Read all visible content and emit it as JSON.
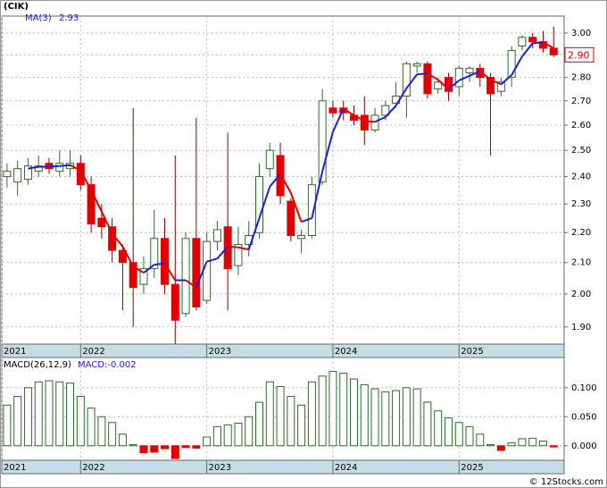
{
  "ticker": "(CIK)",
  "copyright": "© 12Stocks.com",
  "chart_data": [
    {
      "type": "candlestick",
      "x": [
        0,
        1,
        2,
        3,
        4,
        5,
        6,
        7,
        8,
        9,
        10,
        11,
        12,
        13,
        14,
        15,
        16,
        17,
        18,
        19,
        20,
        21,
        22,
        23,
        24,
        25,
        26,
        27,
        28,
        29,
        30,
        31,
        32,
        33,
        34,
        35,
        36,
        37,
        38,
        39,
        40,
        41,
        42,
        43,
        44,
        45,
        46,
        47,
        48,
        49,
        50,
        51,
        52
      ],
      "open": [
        2.4,
        2.38,
        2.39,
        2.42,
        2.45,
        2.42,
        2.43,
        2.45,
        2.37,
        2.25,
        2.22,
        2.14,
        2.1,
        2.03,
        2.08,
        2.18,
        2.03,
        1.94,
        2.18,
        1.98,
        2.17,
        2.22,
        2.09,
        2.16,
        2.2,
        2.43,
        2.48,
        2.31,
        2.18,
        2.19,
        2.38,
        2.67,
        2.67,
        2.64,
        2.64,
        2.58,
        2.64,
        2.69,
        2.72,
        2.85,
        2.86,
        2.75,
        2.8,
        2.76,
        2.82,
        2.84,
        2.8,
        2.74,
        2.8,
        2.94,
        2.98,
        2.96,
        2.93
      ],
      "high": [
        2.45,
        2.46,
        2.47,
        2.48,
        2.47,
        2.5,
        2.5,
        2.48,
        2.4,
        2.3,
        2.25,
        2.16,
        2.67,
        2.12,
        2.28,
        2.25,
        2.48,
        2.2,
        2.63,
        2.2,
        2.24,
        2.57,
        2.22,
        2.24,
        2.45,
        2.53,
        2.53,
        2.32,
        2.21,
        2.4,
        2.75,
        2.7,
        2.7,
        2.68,
        2.72,
        2.67,
        2.7,
        2.78,
        2.87,
        2.87,
        2.87,
        2.8,
        2.82,
        2.85,
        2.85,
        2.86,
        2.82,
        2.8,
        2.94,
        2.99,
        3.0,
        3.01,
        3.03
      ],
      "low": [
        2.36,
        2.33,
        2.37,
        2.4,
        2.41,
        2.4,
        2.4,
        2.35,
        2.2,
        2.18,
        2.1,
        1.95,
        1.9,
        2.0,
        2.05,
        2.0,
        1.85,
        1.93,
        1.95,
        1.97,
        2.14,
        1.95,
        2.06,
        2.12,
        2.18,
        2.4,
        2.3,
        2.17,
        2.13,
        2.18,
        2.37,
        2.63,
        2.62,
        2.6,
        2.52,
        2.57,
        2.62,
        2.67,
        2.63,
        2.82,
        2.71,
        2.73,
        2.7,
        2.72,
        2.78,
        2.76,
        2.48,
        2.72,
        2.76,
        2.92,
        2.93,
        2.91,
        2.89
      ],
      "close": [
        2.42,
        2.43,
        2.44,
        2.44,
        2.43,
        2.45,
        2.45,
        2.37,
        2.23,
        2.22,
        2.14,
        2.1,
        2.02,
        2.08,
        2.18,
        2.03,
        1.92,
        2.18,
        1.96,
        2.17,
        2.21,
        2.08,
        2.16,
        2.19,
        2.4,
        2.5,
        2.33,
        2.19,
        2.19,
        2.37,
        2.7,
        2.65,
        2.65,
        2.62,
        2.58,
        2.64,
        2.68,
        2.72,
        2.86,
        2.86,
        2.73,
        2.78,
        2.74,
        2.84,
        2.84,
        2.8,
        2.73,
        2.78,
        2.92,
        2.98,
        2.96,
        2.93,
        2.9
      ],
      "up_color": "#2e6b2e",
      "down_color": "#e00000",
      "wick_down_color": "#8b0000",
      "series": [
        {
          "name": "MA(3)",
          "color": "#1f1fd6",
          "down_color": "#e00000",
          "last_label": "2.93",
          "values": [
            null,
            null,
            2.43,
            2.437,
            2.437,
            2.44,
            2.443,
            2.423,
            2.35,
            2.273,
            2.197,
            2.153,
            2.087,
            2.067,
            2.093,
            2.097,
            2.043,
            2.043,
            2.02,
            2.103,
            2.113,
            2.153,
            2.15,
            2.143,
            2.25,
            2.363,
            2.41,
            2.34,
            2.237,
            2.25,
            2.42,
            2.573,
            2.667,
            2.64,
            2.617,
            2.613,
            2.633,
            2.68,
            2.753,
            2.813,
            2.817,
            2.79,
            2.75,
            2.787,
            2.807,
            2.827,
            2.79,
            2.77,
            2.81,
            2.893,
            2.953,
            2.957,
            2.93
          ]
        }
      ],
      "last_price": {
        "value": 2.9,
        "label": "2.90"
      },
      "log_scale": true,
      "ylim": [
        1.85,
        3.08
      ],
      "yticks": [
        {
          "value": 1.9,
          "label": "1.90"
        },
        {
          "value": 2.0,
          "label": "2.00"
        },
        {
          "value": 2.1,
          "label": "2.10"
        },
        {
          "value": 2.2,
          "label": "2.20"
        },
        {
          "value": 2.3,
          "label": "2.30"
        },
        {
          "value": 2.4,
          "label": "2.40"
        },
        {
          "value": 2.5,
          "label": "2.50"
        },
        {
          "value": 2.6,
          "label": "2.60"
        },
        {
          "value": 2.7,
          "label": "2.70"
        },
        {
          "value": 2.8,
          "label": "2.80"
        },
        {
          "value": 2.9,
          "label": "2.90"
        },
        {
          "value": 3.0,
          "label": "3.00"
        }
      ],
      "xlim": [
        -0.5,
        53
      ],
      "xticks": [
        {
          "value": -0.5,
          "label": "2021"
        },
        {
          "value": 7,
          "label": "2022"
        },
        {
          "value": 19,
          "label": "2023"
        },
        {
          "value": 31,
          "label": "2024"
        },
        {
          "value": 43,
          "label": "2025"
        }
      ],
      "grid": true
    },
    {
      "type": "bar",
      "x": [
        0,
        1,
        2,
        3,
        4,
        5,
        6,
        7,
        8,
        9,
        10,
        11,
        12,
        13,
        14,
        15,
        16,
        17,
        18,
        19,
        20,
        21,
        22,
        23,
        24,
        25,
        26,
        27,
        28,
        29,
        30,
        31,
        32,
        33,
        34,
        35,
        36,
        37,
        38,
        39,
        40,
        41,
        42,
        43,
        44,
        45,
        46,
        47,
        48,
        49,
        50,
        51,
        52
      ],
      "series": [
        {
          "name": "MACD(26,12,9)",
          "legend_label": "MACD:-0.002",
          "color": "#2e6b2e",
          "down_color": "#e00000",
          "values": [
            0.07,
            0.085,
            0.1,
            0.11,
            0.112,
            0.11,
            0.108,
            0.085,
            0.065,
            0.05,
            0.04,
            0.02,
            0.002,
            -0.012,
            -0.011,
            -0.005,
            -0.022,
            -0.003,
            -0.004,
            0.015,
            0.033,
            0.036,
            0.039,
            0.05,
            0.075,
            0.11,
            0.102,
            0.085,
            0.07,
            0.11,
            0.12,
            0.128,
            0.125,
            0.115,
            0.105,
            0.098,
            0.093,
            0.095,
            0.1,
            0.098,
            0.075,
            0.06,
            0.048,
            0.04,
            0.033,
            0.02,
            0.002,
            -0.008,
            0.005,
            0.012,
            0.013,
            0.008,
            -0.002
          ]
        }
      ],
      "ylim": [
        -0.025,
        0.152
      ],
      "yticks": [
        {
          "value": 0,
          "label": "0.000"
        },
        {
          "value": 0.05,
          "label": "0.050"
        },
        {
          "value": 0.1,
          "label": "0.100"
        }
      ],
      "xlim": [
        -0.5,
        53
      ],
      "xticks": [
        {
          "value": -0.5,
          "label": "2021"
        },
        {
          "value": 7,
          "label": "2022"
        },
        {
          "value": 19,
          "label": "2023"
        },
        {
          "value": 31,
          "label": "2024"
        },
        {
          "value": 43,
          "label": "2025"
        }
      ],
      "grid": true
    }
  ]
}
